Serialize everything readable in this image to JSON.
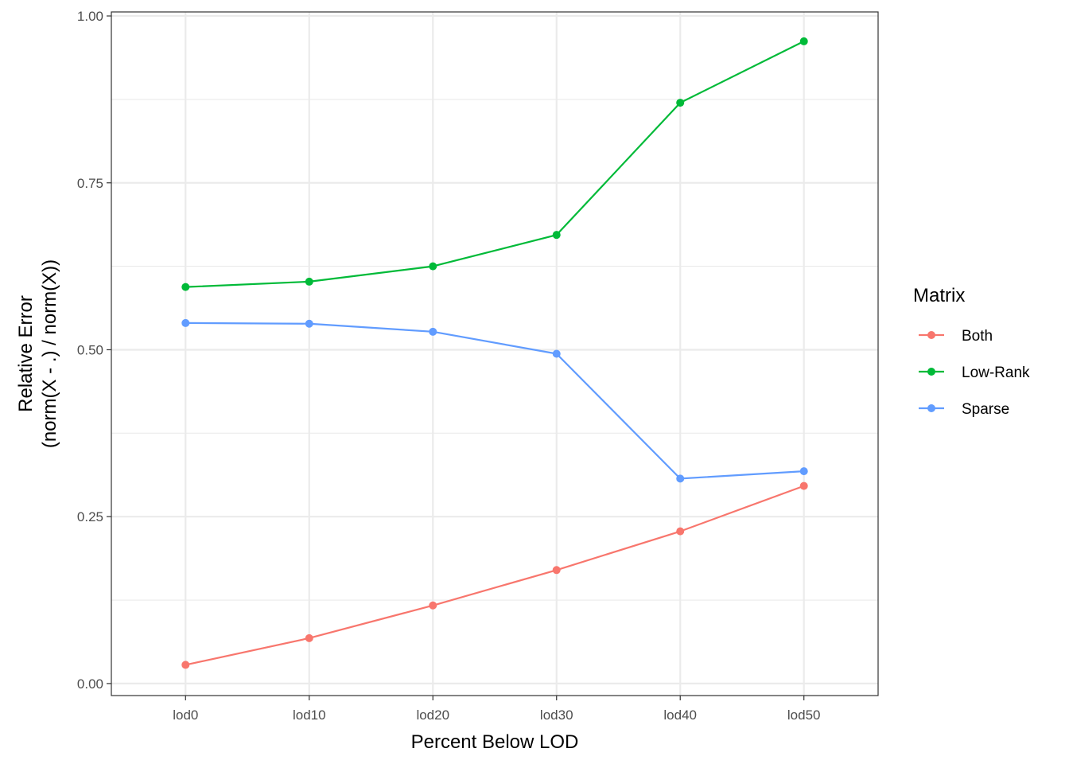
{
  "chart_data": {
    "type": "line",
    "categories": [
      "lod0",
      "lod10",
      "lod20",
      "lod30",
      "lod40",
      "lod50"
    ],
    "series": [
      {
        "name": "Both",
        "color": "#F8766D",
        "values": [
          0.028,
          0.068,
          0.117,
          0.17,
          0.228,
          0.296
        ]
      },
      {
        "name": "Low-Rank",
        "color": "#00BA38",
        "values": [
          0.594,
          0.602,
          0.625,
          0.672,
          0.87,
          0.962
        ]
      },
      {
        "name": "Sparse",
        "color": "#619CFF",
        "values": [
          0.54,
          0.539,
          0.527,
          0.494,
          0.307,
          0.318
        ]
      }
    ],
    "xlabel": "Percent Below LOD",
    "ylabel_lines": [
      "Relative Error",
      "(norm(X - .) / norm(X))"
    ],
    "ylim": [
      -0.018,
      1.006
    ],
    "y_ticks": [
      0.0,
      0.25,
      0.5,
      0.75,
      1.0
    ],
    "y_tick_labels": [
      "0.00",
      "0.25",
      "0.50",
      "0.75",
      "1.00"
    ],
    "y_minor_ticks": [
      0.125,
      0.375,
      0.625,
      0.875
    ],
    "grid": true,
    "legend": {
      "title": "Matrix",
      "position": "right"
    }
  }
}
